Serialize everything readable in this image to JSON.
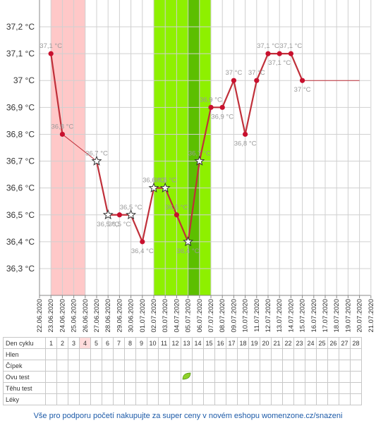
{
  "chart_data": {
    "type": "line",
    "y_unit": "°C",
    "ylim": [
      36.2,
      37.3
    ],
    "y_ticks": [
      "36,3 °C",
      "36,4 °C",
      "36,5 °C",
      "36,6 °C",
      "36,7 °C",
      "36,8 °C",
      "36,9 °C",
      "37 °C",
      "37,1 °C",
      "37,2 °C"
    ],
    "y_tick_values": [
      36.3,
      36.4,
      36.5,
      36.6,
      36.7,
      36.8,
      36.9,
      37.0,
      37.1,
      37.2
    ],
    "dates": [
      "22.06.2020",
      "23.06.2020",
      "24.06.2020",
      "25.06.2020",
      "26.06.2020",
      "27.06.2020",
      "28.06.2020",
      "29.06.2020",
      "30.06.2020",
      "01.07.2020",
      "02.07.2020",
      "03.07.2020",
      "04.07.2020",
      "05.07.2020",
      "06.07.2020",
      "07.07.2020",
      "08.07.2020",
      "09.07.2020",
      "10.07.2020",
      "11.07.2020",
      "12.07.2020",
      "13.07.2020",
      "14.07.2020",
      "15.07.2020",
      "16.07.2020",
      "17.07.2020",
      "18.07.2020",
      "19.07.2020",
      "20.07.2020",
      "21.07.2020"
    ],
    "series": [
      {
        "points": [
          {
            "date": "23.06.2020",
            "value": 37.1,
            "label": "37,1 °C",
            "marker": "dot"
          },
          {
            "date": "24.06.2020",
            "value": 36.8,
            "label": "36,8 °C",
            "marker": "dot"
          },
          {
            "date": "27.06.2020",
            "value": 36.7,
            "label": "36,7 °C",
            "marker": "star"
          },
          {
            "date": "28.06.2020",
            "value": 36.5,
            "label": "36,5 °C",
            "marker": "star"
          },
          {
            "date": "29.06.2020",
            "value": 36.5,
            "label": "36,5 °C",
            "marker": "dot"
          },
          {
            "date": "30.06.2020",
            "value": 36.5,
            "label": "36,5 °C",
            "marker": "star"
          },
          {
            "date": "01.07.2020",
            "value": 36.4,
            "label": "36,4 °C",
            "marker": "dot"
          },
          {
            "date": "02.07.2020",
            "value": 36.6,
            "label": "36,6 °C",
            "marker": "star"
          },
          {
            "date": "03.07.2020",
            "value": 36.6,
            "label": "36,6 °C",
            "marker": "star"
          },
          {
            "date": "04.07.2020",
            "value": 36.5,
            "label": "36,5 °C",
            "marker": "dot"
          },
          {
            "date": "05.07.2020",
            "value": 36.4,
            "label": "36,4 °C",
            "marker": "star"
          },
          {
            "date": "06.07.2020",
            "value": 36.7,
            "label": "36,7 °C",
            "marker": "star"
          },
          {
            "date": "07.07.2020",
            "value": 36.9,
            "label": "36,9 °C",
            "marker": "dot"
          },
          {
            "date": "08.07.2020",
            "value": 36.9,
            "label": "36,9 °C",
            "marker": "dot"
          },
          {
            "date": "09.07.2020",
            "value": 37.0,
            "label": "37 °C",
            "marker": "dot"
          },
          {
            "date": "10.07.2020",
            "value": 36.8,
            "label": "36,8 °C",
            "marker": "dot"
          },
          {
            "date": "11.07.2020",
            "value": 37.0,
            "label": "37 °C",
            "marker": "dot"
          },
          {
            "date": "12.07.2020",
            "value": 37.1,
            "label": "37,1 °C",
            "marker": "dot"
          },
          {
            "date": "13.07.2020",
            "value": 37.1,
            "label": "37,1 °C",
            "marker": "dot"
          },
          {
            "date": "14.07.2020",
            "value": 37.1,
            "label": "37,1 °C",
            "marker": "dot"
          },
          {
            "date": "15.07.2020",
            "value": 37.0,
            "label": "37 °C",
            "marker": "dot"
          }
        ],
        "extension": {
          "from": "15.07.2020",
          "to": "20.07.2020",
          "value": 37.0
        }
      }
    ],
    "bands": [
      {
        "kind": "menstruation",
        "from": "23.06.2020",
        "to": "26.06.2020",
        "color": "#ffc8c8"
      },
      {
        "kind": "fertile",
        "from": "02.07.2020",
        "to": "07.07.2020",
        "color": "#8ef000"
      },
      {
        "kind": "fertile-peak",
        "from": "05.07.2020",
        "to": "06.07.2020",
        "color": "#5cbf00"
      }
    ],
    "colors": {
      "line": "#c0303a",
      "dot": "#c8102e",
      "label": "#9a9a9a",
      "grid": "#d0d0d0"
    }
  },
  "table": {
    "rows": [
      "Den cyklu",
      "Hlen",
      "Čípek",
      "Ovu test",
      "Těhu test",
      "Léky"
    ],
    "days": [
      "1",
      "2",
      "3",
      "4",
      "5",
      "6",
      "7",
      "8",
      "9",
      "10",
      "11",
      "12",
      "13",
      "14",
      "15",
      "16",
      "17",
      "18",
      "19",
      "20",
      "21",
      "22",
      "23",
      "24",
      "25",
      "26",
      "27",
      "28"
    ],
    "highlight_day": "4",
    "ovu_test_day": "13",
    "ovu_test_icon": "leaf-icon"
  },
  "footer": "Vše pro podporu početí nakupujte za super ceny v novém eshopu womenzone.cz/snazeni"
}
